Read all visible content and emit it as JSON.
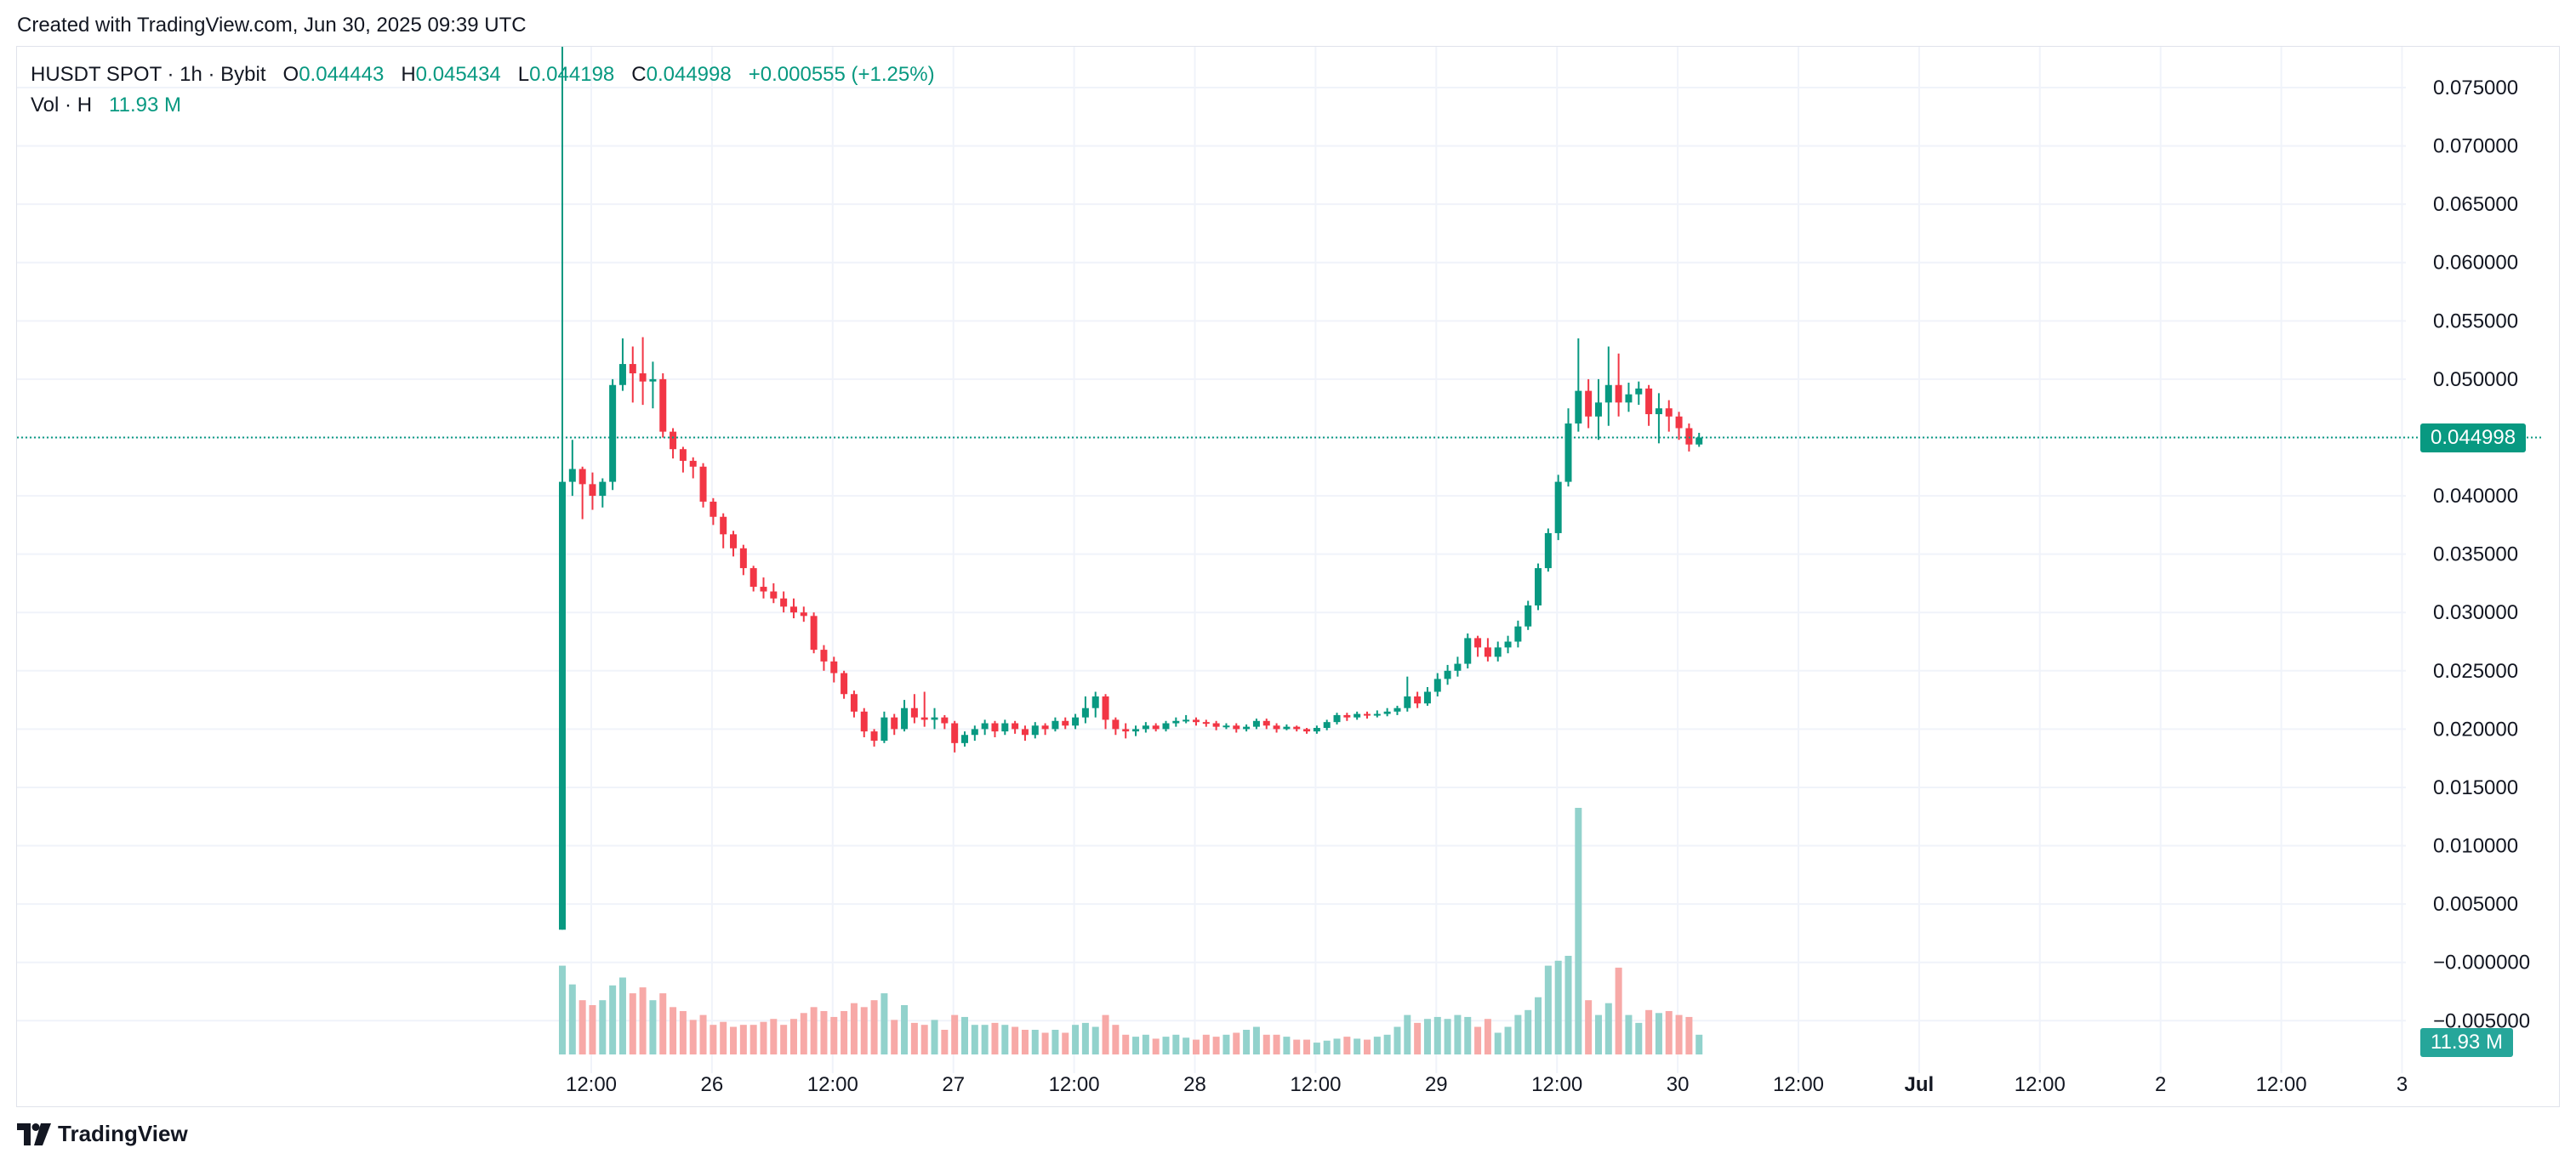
{
  "header": {
    "created_text": "Created with TradingView.com, Jun 30, 2025 09:39 UTC"
  },
  "legend": {
    "symbol": "HUSDT SPOT · 1h · Bybit",
    "open_label": "O",
    "open_value": "0.044443",
    "high_label": "H",
    "high_value": "0.045434",
    "low_label": "L",
    "low_value": "0.044198",
    "close_label": "C",
    "close_value": "0.044998",
    "change": "+0.000555 (+1.25%)",
    "vol_label": "Vol · H",
    "vol_value": "11.93 M"
  },
  "badges": {
    "price": "0.044998",
    "volume": "11.93 M"
  },
  "footer": {
    "brand": "TradingView",
    "logo_icon": "tradingview-logo-icon"
  },
  "colors": {
    "up": "#089981",
    "down": "#f23645",
    "up_vol": "#92d2cc",
    "down_vol": "#f7a9a7",
    "grid": "#f0f3fa"
  },
  "chart_data": {
    "type": "candlestick",
    "interval": "1h",
    "y_axis": {
      "ticks": [
        "0.075000",
        "0.070000",
        "0.065000",
        "0.060000",
        "0.055000",
        "0.050000",
        "0.045000",
        "0.040000",
        "0.035000",
        "0.030000",
        "0.025000",
        "0.020000",
        "0.015000",
        "0.010000",
        "0.005000",
        "−0.000000",
        "−0.005000"
      ],
      "range": [
        -0.0095,
        0.0785
      ]
    },
    "x_axis": {
      "ticks": [
        "12:00",
        "26",
        "12:00",
        "27",
        "12:00",
        "28",
        "12:00",
        "29",
        "12:00",
        "30",
        "12:00",
        "Jul",
        "12:00",
        "2",
        "12:00",
        "3"
      ],
      "bold": [
        "Jul"
      ]
    },
    "last_price": 0.044998,
    "candles": [
      [
        0.0028,
        0.0412,
        0.0028,
        0.0785,
        0.9
      ],
      [
        0.0412,
        0.0423,
        0.04,
        0.0448,
        0.71
      ],
      [
        0.0423,
        0.041,
        0.038,
        0.0425,
        0.55
      ],
      [
        0.041,
        0.04,
        0.0388,
        0.042,
        0.5
      ],
      [
        0.04,
        0.0412,
        0.039,
        0.0415,
        0.55
      ],
      [
        0.0412,
        0.0495,
        0.0405,
        0.05,
        0.7
      ],
      [
        0.0495,
        0.0513,
        0.049,
        0.0535,
        0.78
      ],
      [
        0.0513,
        0.0505,
        0.048,
        0.0528,
        0.62
      ],
      [
        0.0505,
        0.0498,
        0.0478,
        0.0536,
        0.68
      ],
      [
        0.0498,
        0.05,
        0.0475,
        0.0515,
        0.55
      ],
      [
        0.05,
        0.0455,
        0.045,
        0.0505,
        0.62
      ],
      [
        0.0455,
        0.044,
        0.0432,
        0.0458,
        0.48
      ],
      [
        0.044,
        0.043,
        0.042,
        0.0442,
        0.44
      ],
      [
        0.043,
        0.0425,
        0.0415,
        0.0433,
        0.35
      ],
      [
        0.0425,
        0.0395,
        0.039,
        0.0428,
        0.4
      ],
      [
        0.0395,
        0.0382,
        0.0375,
        0.0398,
        0.3
      ],
      [
        0.0382,
        0.0367,
        0.0355,
        0.0385,
        0.33
      ],
      [
        0.0367,
        0.0355,
        0.0348,
        0.037,
        0.28
      ],
      [
        0.0355,
        0.0338,
        0.0332,
        0.0358,
        0.3
      ],
      [
        0.0338,
        0.0322,
        0.0318,
        0.034,
        0.3
      ],
      [
        0.0322,
        0.0318,
        0.0312,
        0.033,
        0.33
      ],
      [
        0.0318,
        0.0312,
        0.0308,
        0.0325,
        0.36
      ],
      [
        0.0312,
        0.0305,
        0.03,
        0.0318,
        0.3
      ],
      [
        0.0305,
        0.03,
        0.0295,
        0.0312,
        0.36
      ],
      [
        0.03,
        0.0297,
        0.0292,
        0.0305,
        0.42
      ],
      [
        0.0297,
        0.0268,
        0.0265,
        0.03,
        0.48
      ],
      [
        0.0268,
        0.0258,
        0.025,
        0.0272,
        0.44
      ],
      [
        0.0258,
        0.0248,
        0.024,
        0.0262,
        0.38
      ],
      [
        0.0248,
        0.023,
        0.0226,
        0.025,
        0.44
      ],
      [
        0.023,
        0.0215,
        0.021,
        0.0233,
        0.52
      ],
      [
        0.0215,
        0.0198,
        0.0193,
        0.0218,
        0.48
      ],
      [
        0.0198,
        0.019,
        0.0185,
        0.02,
        0.55
      ],
      [
        0.019,
        0.021,
        0.0188,
        0.0215,
        0.62
      ],
      [
        0.021,
        0.02,
        0.0195,
        0.0213,
        0.35
      ],
      [
        0.02,
        0.0218,
        0.0198,
        0.0225,
        0.5
      ],
      [
        0.0218,
        0.021,
        0.0205,
        0.023,
        0.32
      ],
      [
        0.021,
        0.0208,
        0.0202,
        0.0232,
        0.3
      ],
      [
        0.0208,
        0.021,
        0.02,
        0.0218,
        0.35
      ],
      [
        0.021,
        0.0205,
        0.02,
        0.0212,
        0.25
      ],
      [
        0.0205,
        0.0188,
        0.018,
        0.0207,
        0.4
      ],
      [
        0.0188,
        0.0195,
        0.0185,
        0.0198,
        0.38
      ],
      [
        0.0195,
        0.02,
        0.019,
        0.0203,
        0.3
      ],
      [
        0.02,
        0.0205,
        0.0195,
        0.0208,
        0.3
      ],
      [
        0.0205,
        0.0198,
        0.0193,
        0.0207,
        0.32
      ],
      [
        0.0198,
        0.0205,
        0.0195,
        0.0208,
        0.3
      ],
      [
        0.0205,
        0.02,
        0.0196,
        0.0207,
        0.28
      ],
      [
        0.02,
        0.0195,
        0.019,
        0.0203,
        0.25
      ],
      [
        0.0195,
        0.0203,
        0.0192,
        0.0206,
        0.25
      ],
      [
        0.0203,
        0.02,
        0.0195,
        0.0205,
        0.22
      ],
      [
        0.02,
        0.0207,
        0.0198,
        0.021,
        0.25
      ],
      [
        0.0207,
        0.0203,
        0.02,
        0.021,
        0.22
      ],
      [
        0.0203,
        0.021,
        0.02,
        0.0213,
        0.3
      ],
      [
        0.021,
        0.0218,
        0.0205,
        0.0228,
        0.32
      ],
      [
        0.0218,
        0.0228,
        0.021,
        0.0232,
        0.28
      ],
      [
        0.0228,
        0.0208,
        0.02,
        0.023,
        0.4
      ],
      [
        0.0208,
        0.02,
        0.0195,
        0.021,
        0.3
      ],
      [
        0.02,
        0.0198,
        0.0192,
        0.0205,
        0.2
      ],
      [
        0.0198,
        0.02,
        0.0194,
        0.0203,
        0.18
      ],
      [
        0.02,
        0.0203,
        0.0197,
        0.0206,
        0.2
      ],
      [
        0.0203,
        0.02,
        0.0198,
        0.0205,
        0.16
      ],
      [
        0.02,
        0.0205,
        0.0198,
        0.0207,
        0.18
      ],
      [
        0.0205,
        0.0207,
        0.0202,
        0.021,
        0.2
      ],
      [
        0.0207,
        0.0208,
        0.0205,
        0.0212,
        0.17
      ],
      [
        0.0208,
        0.0206,
        0.0203,
        0.021,
        0.15
      ],
      [
        0.0206,
        0.0205,
        0.0202,
        0.0208,
        0.2
      ],
      [
        0.0205,
        0.0202,
        0.0199,
        0.0207,
        0.18
      ],
      [
        0.0202,
        0.0203,
        0.02,
        0.0205,
        0.2
      ],
      [
        0.0203,
        0.02,
        0.0197,
        0.0205,
        0.22
      ],
      [
        0.02,
        0.0202,
        0.0198,
        0.0204,
        0.25
      ],
      [
        0.0202,
        0.0207,
        0.02,
        0.0209,
        0.28
      ],
      [
        0.0207,
        0.0203,
        0.02,
        0.0209,
        0.2
      ],
      [
        0.0203,
        0.02,
        0.0197,
        0.0205,
        0.2
      ],
      [
        0.02,
        0.0202,
        0.0199,
        0.0204,
        0.18
      ],
      [
        0.0202,
        0.02,
        0.0198,
        0.0203,
        0.15
      ],
      [
        0.02,
        0.0198,
        0.0196,
        0.0201,
        0.15
      ],
      [
        0.0198,
        0.0201,
        0.0196,
        0.0203,
        0.12
      ],
      [
        0.0201,
        0.0206,
        0.0199,
        0.0208,
        0.14
      ],
      [
        0.0206,
        0.0212,
        0.0204,
        0.0214,
        0.16
      ],
      [
        0.0212,
        0.021,
        0.0207,
        0.0214,
        0.18
      ],
      [
        0.021,
        0.0213,
        0.0208,
        0.0215,
        0.16
      ],
      [
        0.0213,
        0.0212,
        0.0209,
        0.0215,
        0.15
      ],
      [
        0.0212,
        0.0213,
        0.021,
        0.0216,
        0.18
      ],
      [
        0.0213,
        0.0215,
        0.0211,
        0.0218,
        0.2
      ],
      [
        0.0215,
        0.0218,
        0.0212,
        0.022,
        0.28
      ],
      [
        0.0218,
        0.0228,
        0.0215,
        0.0245,
        0.4
      ],
      [
        0.0228,
        0.0222,
        0.0218,
        0.0232,
        0.32
      ],
      [
        0.0222,
        0.0232,
        0.022,
        0.0236,
        0.36
      ],
      [
        0.0232,
        0.0243,
        0.0228,
        0.0248,
        0.38
      ],
      [
        0.0243,
        0.025,
        0.0238,
        0.0255,
        0.36
      ],
      [
        0.025,
        0.0256,
        0.0245,
        0.0262,
        0.4
      ],
      [
        0.0256,
        0.0278,
        0.0252,
        0.0282,
        0.38
      ],
      [
        0.0278,
        0.027,
        0.0262,
        0.028,
        0.28
      ],
      [
        0.027,
        0.0262,
        0.0258,
        0.0278,
        0.36
      ],
      [
        0.0262,
        0.027,
        0.0258,
        0.0275,
        0.22
      ],
      [
        0.027,
        0.0275,
        0.0265,
        0.028,
        0.28
      ],
      [
        0.0275,
        0.0288,
        0.027,
        0.0293,
        0.4
      ],
      [
        0.0288,
        0.0306,
        0.0285,
        0.031,
        0.45
      ],
      [
        0.0306,
        0.0338,
        0.0302,
        0.0342,
        0.58
      ],
      [
        0.0338,
        0.0368,
        0.0335,
        0.0372,
        0.9
      ],
      [
        0.0368,
        0.0412,
        0.0362,
        0.0418,
        0.95
      ],
      [
        0.0412,
        0.0462,
        0.0408,
        0.0475,
        1.0
      ],
      [
        0.0462,
        0.049,
        0.0455,
        0.0535,
        2.5
      ],
      [
        0.049,
        0.0468,
        0.0458,
        0.05,
        0.55
      ],
      [
        0.0468,
        0.048,
        0.0448,
        0.05,
        0.4
      ],
      [
        0.048,
        0.0495,
        0.046,
        0.0528,
        0.52
      ],
      [
        0.0495,
        0.048,
        0.0468,
        0.0522,
        0.88
      ],
      [
        0.048,
        0.0487,
        0.0472,
        0.0497,
        0.4
      ],
      [
        0.0487,
        0.0492,
        0.0478,
        0.0498,
        0.32
      ],
      [
        0.0492,
        0.047,
        0.046,
        0.0495,
        0.45
      ],
      [
        0.047,
        0.0475,
        0.0445,
        0.0488,
        0.42
      ],
      [
        0.0475,
        0.0468,
        0.0455,
        0.0482,
        0.44
      ],
      [
        0.0468,
        0.0458,
        0.0448,
        0.0472,
        0.4
      ],
      [
        0.0458,
        0.0444,
        0.0438,
        0.0462,
        0.38
      ],
      [
        0.0444,
        0.045,
        0.0442,
        0.0454,
        0.2
      ]
    ]
  }
}
